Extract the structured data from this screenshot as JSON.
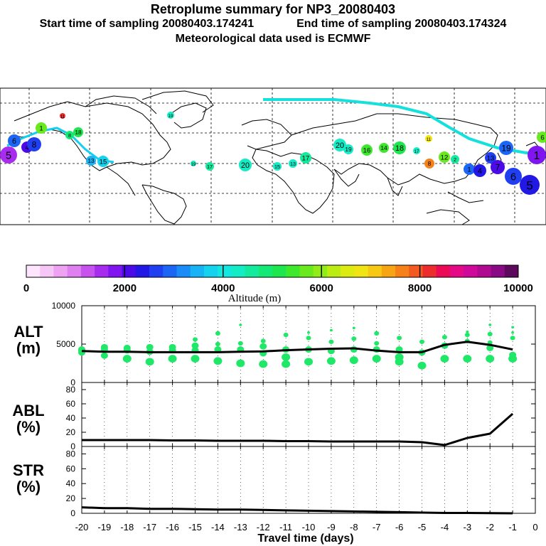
{
  "title": "Retroplume summary for NP3_20080403",
  "start_label": "Start time of sampling 20080403.174241",
  "end_label": "End time of sampling 20080403.174324",
  "met_label": "Meteorological data used is ECMWF",
  "colorbar": {
    "label": "Altitude (m)",
    "ticks": [
      "0",
      "2000",
      "4000",
      "6000",
      "8000",
      "10000"
    ],
    "colors": [
      "#fde6fd",
      "#f6c6f6",
      "#eea3f2",
      "#de80ef",
      "#c752ee",
      "#a82cf0",
      "#7f15ef",
      "#4b0ae8",
      "#2218e6",
      "#1f3ff1",
      "#1c66f6",
      "#1a8cf7",
      "#17b3f4",
      "#15d2ef",
      "#14e7e0",
      "#14ecc5",
      "#14ea9e",
      "#14e875",
      "#1ee64e",
      "#3de82d",
      "#68ea1e",
      "#92ec17",
      "#bbed14",
      "#dcec13",
      "#f1e414",
      "#f7c814",
      "#f7a514",
      "#f6801a",
      "#f25a22",
      "#ec2d2d",
      "#ea0a55",
      "#e40a85",
      "#cf0a9a",
      "#b00a90",
      "#8a0a86",
      "#5e0a5c"
    ]
  },
  "map_markers": [
    "1",
    "2",
    "3",
    "4",
    "5",
    "6",
    "7",
    "8",
    "9",
    "10",
    "11",
    "12",
    "13",
    "14",
    "15",
    "16",
    "17",
    "18",
    "19",
    "20"
  ],
  "panels": [
    {
      "name": "ALT",
      "unit": "(m)"
    },
    {
      "name": "ABL",
      "unit": "(%)"
    },
    {
      "name": "STR",
      "unit": "(%)"
    }
  ],
  "chart_data": [
    {
      "type": "line",
      "panel": "ALT",
      "ylabel": "ALT (m)",
      "ylim": [
        0,
        10000
      ],
      "yticks": [
        "10000",
        "5000",
        "0"
      ],
      "x": [
        -20,
        -19,
        -18,
        -17,
        -16,
        -15,
        -14,
        -13,
        -12,
        -11,
        -10,
        -9,
        -8,
        -7,
        -6,
        -5,
        -4,
        -3,
        -2,
        -1
      ],
      "values": [
        4100,
        4000,
        4000,
        3950,
        3950,
        3950,
        3950,
        4000,
        4050,
        4200,
        4300,
        4400,
        4450,
        4150,
        3950,
        3950,
        4900,
        5300,
        4900,
        4300
      ],
      "scatter": [
        [
          4100,
          4300,
          3900
        ],
        [
          3500,
          4300,
          4600
        ],
        [
          3100,
          4200,
          4500
        ],
        [
          2700,
          4000,
          4600
        ],
        [
          3100,
          4200,
          4600
        ],
        [
          3100,
          4200,
          4800,
          5600
        ],
        [
          2800,
          4300,
          5000,
          6400
        ],
        [
          2500,
          4300,
          5100,
          7500
        ],
        [
          2400,
          3800,
          4700,
          5400
        ],
        [
          2400,
          3300,
          4300,
          6200
        ],
        [
          2700,
          4300,
          5800,
          6500
        ],
        [
          2800,
          4100,
          5300,
          6800
        ],
        [
          2900,
          4300,
          5700,
          7100
        ],
        [
          3100,
          4300,
          5100,
          6400
        ],
        [
          2700,
          3300,
          4300,
          5800
        ],
        [
          2200,
          3900,
          5300
        ],
        [
          3100,
          4800,
          5900
        ],
        [
          3100,
          5400,
          6200,
          6600
        ],
        [
          3100,
          4500,
          5200,
          6300,
          7500
        ],
        [
          3100,
          3600,
          5800,
          6500,
          7200
        ]
      ]
    },
    {
      "type": "line",
      "panel": "ABL",
      "ylabel": "ABL (%)",
      "ylim": [
        0,
        90
      ],
      "yticks": [
        "80",
        "60",
        "40",
        "20",
        "0"
      ],
      "x": [
        -20,
        -19,
        -18,
        -17,
        -16,
        -15,
        -14,
        -13,
        -12,
        -11,
        -10,
        -9,
        -8,
        -7,
        -6,
        -5,
        -4,
        -3,
        -2,
        -1
      ],
      "values": [
        9,
        9,
        9,
        9,
        8.5,
        8.5,
        8,
        8,
        8,
        7.5,
        7.5,
        7,
        7,
        7,
        7,
        6,
        2,
        12,
        18,
        46
      ]
    },
    {
      "type": "line",
      "panel": "STR",
      "ylabel": "STR (%)",
      "ylim": [
        0,
        90
      ],
      "yticks": [
        "80",
        "60",
        "40",
        "20",
        "0"
      ],
      "x": [
        -20,
        -19,
        -18,
        -17,
        -16,
        -15,
        -14,
        -13,
        -12,
        -11,
        -10,
        -9,
        -8,
        -7,
        -6,
        -5,
        -4,
        -3,
        -2,
        -1
      ],
      "values": [
        8,
        7,
        7,
        6,
        6,
        5.5,
        5,
        5,
        4.5,
        4,
        3.5,
        3,
        2.5,
        2,
        1.5,
        1,
        0.5,
        0.5,
        0.2,
        0
      ],
      "xticks": [
        "-20",
        "-19",
        "-18",
        "-17",
        "-16",
        "-15",
        "-14",
        "-13",
        "-12",
        "-11",
        "-10",
        "-9",
        "-8",
        "-7",
        "-6",
        "-5",
        "-4",
        "-3",
        "-2",
        "-1",
        "0"
      ],
      "xlabel": "Travel time (days)"
    }
  ]
}
